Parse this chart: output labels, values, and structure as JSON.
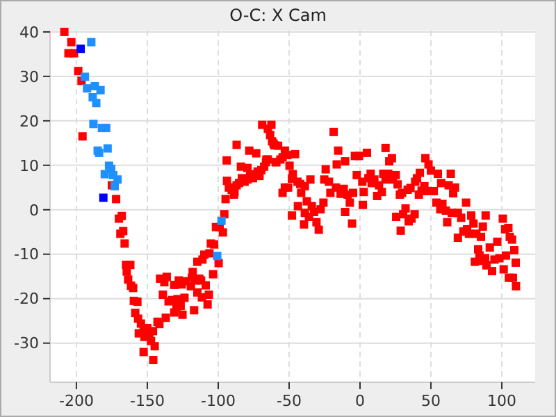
{
  "chart_data": {
    "type": "scatter",
    "title": "O-C: X Cam",
    "xlim": [
      -218.6,
      123.5
    ],
    "ylim": [
      -38.8,
      40.3
    ],
    "xticks": [
      -200,
      -150,
      -100,
      -50,
      0,
      50,
      100
    ],
    "yticks": [
      -30,
      -20,
      -10,
      0,
      10,
      20,
      30,
      40
    ],
    "grid": true,
    "marker": "square",
    "series": [
      {
        "color": "#ff0000",
        "x": [
          -208.5,
          -203.6,
          -205.6,
          -201.7,
          -198.7,
          -196.4,
          -195.7,
          -175,
          -172,
          -170,
          -168,
          -169,
          -167,
          -166,
          -165,
          -162,
          -164.5,
          -163.5,
          -161.5,
          -160,
          -159.5,
          -157,
          -158.5,
          -156.5,
          -154.5,
          -156,
          -152.6,
          -152,
          -150,
          -148.7,
          -147.4,
          -146,
          -152.6,
          -144.8,
          -145.8,
          -142.8,
          -141.5,
          -141,
          -138,
          -136.3,
          -139,
          -137,
          -135,
          -132.4,
          -131,
          -129.4,
          -128.7,
          -125.2,
          -126.5,
          -123.8,
          -131,
          -127.8,
          -125.8,
          -123.2,
          -119.3,
          -118.6,
          -118,
          -117,
          -116,
          -114.7,
          -113.4,
          -112.1,
          -111.5,
          -108.8,
          -107.5,
          -106.6,
          -114.7,
          -111.1,
          -109.8,
          -106.2,
          -105.2,
          -102.9,
          -103.6,
          -99.7,
          -101.6,
          -99,
          -96.7,
          -95.7,
          -94.8,
          -88.9,
          -94,
          -93.8,
          -92.5,
          -90.5,
          -88.5,
          -87,
          -85.3,
          -83.3,
          -81.4,
          -79.4,
          -77.5,
          -75.5,
          -73.5,
          -72.2,
          -70.9,
          -69.6,
          -67.6,
          -66.3,
          -65,
          -87,
          -84,
          -79.4,
          -78.1,
          -73.2,
          -69,
          -62.5,
          -65,
          -63.4,
          -62,
          -60.4,
          -59,
          -61,
          -57.8,
          -53,
          -54.6,
          -51.3,
          -56.2,
          -66,
          -59.5,
          -45.8,
          -49.7,
          -47.4,
          -48,
          -44.1,
          -42.2,
          -53,
          -54.6,
          -50.7,
          -41.5,
          -38.9,
          -35,
          -37.5,
          -43.8,
          -48,
          -38.9,
          -36,
          -34,
          -32.4,
          -30.7,
          -29.1,
          -27.8,
          -25.8,
          -24.2,
          -25.2,
          -21.9,
          -20.9,
          -18.6,
          -15.4,
          -16.4,
          -10.5,
          -17,
          -13.7,
          -11.5,
          -8.8,
          -7.2,
          -10.5,
          -5.6,
          -4.9,
          -3.6,
          -0.7,
          -2.3,
          1.6,
          2.6,
          2,
          4.9,
          5.9,
          7.5,
          8.2,
          10.1,
          12.1,
          13.4,
          15.4,
          16.4,
          18,
          18,
          19.9,
          20.6,
          22.5,
          23.2,
          25.2,
          26.5,
          28.1,
          29.7,
          25.5,
          30.4,
          32.1,
          34.3,
          36.3,
          38.5,
          28.7,
          33.6,
          35.6,
          38.9,
          40.2,
          42.2,
          41.5,
          43.4,
          45.4,
          46.1,
          48.3,
          50,
          47.4,
          52,
          54.9,
          57.2,
          53.9,
          58.1,
          56.6,
          60.5,
          61.5,
          62.5,
          64,
          65.7,
          67,
          64.7,
          69,
          71.3,
          74.8,
          69,
          72.9,
          75.5,
          76.8,
          78.4,
          80,
          82,
          85.3,
          86.6,
          88.6,
          83.3,
          84.3,
          81,
          86,
          88.2,
          91.5,
          89.2,
          93.1,
          94.8,
          96.8,
          98.3,
          100.7,
          102.3,
          104.6,
          102.9,
          105.6,
          107.2,
          108.8,
          109.8,
          101.3,
          107.8,
          110,
          105,
          -39.5
        ],
        "values": [
          40,
          37.7,
          35.2,
          35.2,
          31.2,
          29,
          16.5,
          5.5,
          2.4,
          -2,
          -1.4,
          -5.4,
          -4.8,
          -7.6,
          -12.4,
          -12.4,
          -13.9,
          -15.7,
          -17.1,
          -17.6,
          -20.5,
          -20.7,
          -23.2,
          -24.5,
          -25.6,
          -27.8,
          -27.2,
          -28.6,
          -26.6,
          -27.8,
          -29.5,
          -27.3,
          -32,
          -30.7,
          -33.8,
          -25.2,
          -25.7,
          -15.5,
          -16.3,
          -15.1,
          -19.1,
          -24.3,
          -20.6,
          -20.3,
          -23.1,
          -21.9,
          -20.1,
          -23.6,
          -21.6,
          -19.8,
          -16.9,
          -15.9,
          -16.8,
          -16.1,
          -17.2,
          -15.3,
          -14,
          -22.6,
          -15.9,
          -18.6,
          -15.5,
          -15.9,
          -19.7,
          -17,
          -21.3,
          -19.1,
          -11.7,
          -11.2,
          -10.1,
          -9.8,
          -7.6,
          -7.8,
          -14.5,
          -12,
          -3.9,
          -3.9,
          -5.1,
          -1,
          2.4,
          3.4,
          11.1,
          6.5,
          5,
          4.5,
          4,
          5.5,
          6,
          7.1,
          6.3,
          6.8,
          7.6,
          7.1,
          8,
          8.6,
          7.6,
          8.9,
          9.7,
          10.7,
          11.3,
          14.6,
          9.7,
          9.4,
          13.3,
          12.7,
          19.1,
          19.1,
          18.2,
          16.8,
          15.4,
          14.5,
          10.7,
          14.9,
          14.4,
          13.3,
          11.8,
          12.3,
          11.3,
          11.3,
          10.7,
          12.5,
          9.9,
          8,
          7,
          6.3,
          5.8,
          5,
          3.8,
          5,
          3.8,
          5.3,
          6.8,
          1.9,
          0.8,
          -1.3,
          -0.7,
          -1.6,
          0.8,
          -0.5,
          -2.8,
          -4.5,
          0.1,
          1.6,
          9.1,
          6.8,
          6.3,
          3.8,
          17.5,
          13.3,
          10.2,
          10.9,
          5,
          3.6,
          4.7,
          3.4,
          1.6,
          -0.5,
          -3.1,
          3.8,
          12.1,
          12.1,
          7.8,
          6.3,
          4,
          1.1,
          12.8,
          7.1,
          8.1,
          6,
          6.8,
          3.1,
          5.5,
          4,
          8.1,
          13.9,
          6.8,
          8.1,
          10.9,
          11.6,
          6.8,
          7.8,
          5.7,
          3.4,
          3.8,
          -1.6,
          -1,
          0.3,
          -2.6,
          -2,
          -1,
          -4.7,
          4.5,
          4.9,
          6.3,
          7.1,
          8.3,
          3.4,
          4.3,
          5.3,
          11.6,
          10.2,
          8.8,
          4.2,
          4.2,
          8.1,
          6,
          1.6,
          1.3,
          0.1,
          -0.2,
          -2.8,
          5.5,
          8.1,
          3.7,
          5,
          -0.7,
          -0.7,
          -1.8,
          1.6,
          -6.3,
          -4.9,
          -4.4,
          -5.4,
          -1.3,
          -3.1,
          -5.4,
          -6.1,
          -3.8,
          -1.3,
          -8.9,
          -10.3,
          -11.7,
          -11.5,
          -10.9,
          -8.5,
          -12.5,
          -13.8,
          -11.2,
          -7.2,
          -10.9,
          -2,
          -4.4,
          -4.1,
          -10.3,
          -6.1,
          -6.7,
          -9.1,
          -11.9,
          -13.4,
          -15.3,
          -17.2,
          -15.3,
          -3.3
        ]
      },
      {
        "color": "#1e90ff",
        "x": [
          -189.5,
          -194,
          -192.5,
          -187,
          -183,
          -188.5,
          -186,
          -188,
          -182,
          -179,
          -185,
          -184,
          -178,
          -177,
          -175.5,
          -180,
          -174,
          -171,
          -173,
          -97.7,
          -100.7
        ],
        "values": [
          37.7,
          29.9,
          27.3,
          27.8,
          26.9,
          25.3,
          24,
          19.3,
          18.4,
          18.4,
          13.3,
          12.8,
          13.8,
          9.9,
          9.2,
          8,
          7.8,
          6.8,
          5.3,
          -2.5,
          -10.4
        ]
      },
      {
        "color": "#0000ff",
        "x": [
          -197,
          -181
        ],
        "values": [
          36.2,
          2.7
        ]
      }
    ]
  }
}
